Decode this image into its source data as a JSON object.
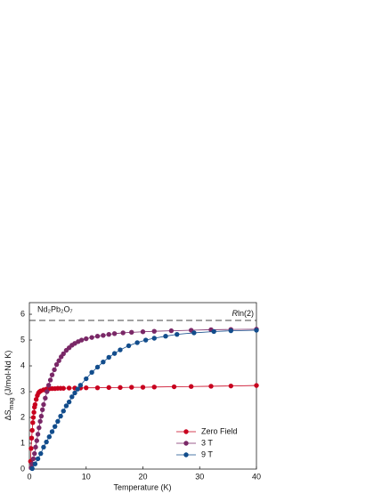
{
  "chart_data": {
    "type": "scatter",
    "annotation": "Nd₂Pb₂O₇",
    "hline": {
      "value": 5.76,
      "label": [
        "R",
        "ln(2)"
      ]
    },
    "x_label": "Temperature (K)",
    "y_label": [
      "ΔS",
      "mag",
      " (J/mol-Nd K)"
    ],
    "xlim": [
      0,
      40
    ],
    "ylim": [
      0,
      6.45
    ],
    "xticks": [
      0,
      10,
      20,
      30,
      40
    ],
    "yticks": [
      0,
      1,
      2,
      3,
      4,
      5,
      6
    ],
    "legend": "lower-right",
    "series": [
      {
        "name": "Zero Field",
        "color": "#c8001e",
        "x": [
          0.2,
          0.3,
          0.4,
          0.5,
          0.6,
          0.7,
          0.8,
          0.9,
          1.0,
          1.2,
          1.4,
          1.6,
          1.8,
          2.0,
          2.5,
          3,
          3.5,
          4,
          4.5,
          5,
          5.5,
          6,
          7,
          8,
          9,
          10,
          12,
          14,
          16,
          18,
          20,
          22,
          25.5,
          28.5,
          32,
          35.5,
          40
        ],
        "values": [
          0.3,
          0.8,
          1.2,
          1.5,
          1.8,
          2.0,
          2.2,
          2.4,
          2.5,
          2.7,
          2.85,
          2.95,
          3.0,
          3.03,
          3.07,
          3.1,
          3.11,
          3.12,
          3.12,
          3.13,
          3.13,
          3.13,
          3.14,
          3.14,
          3.14,
          3.15,
          3.15,
          3.16,
          3.16,
          3.17,
          3.17,
          3.18,
          3.19,
          3.2,
          3.21,
          3.22,
          3.24
        ]
      },
      {
        "name": "3 T",
        "color": "#7a2867",
        "x": [
          0.3,
          0.5,
          0.7,
          0.9,
          1.1,
          1.3,
          1.5,
          1.7,
          1.9,
          2.1,
          2.3,
          2.5,
          2.8,
          3.1,
          3.4,
          3.7,
          4.0,
          4.4,
          4.8,
          5.2,
          5.6,
          6.0,
          6.5,
          7,
          7.5,
          8,
          8.6,
          9.2,
          10,
          11,
          12,
          13,
          14,
          15,
          16.5,
          18,
          20,
          22,
          25,
          28.5,
          32,
          35.5,
          40
        ],
        "values": [
          0.05,
          0.2,
          0.4,
          0.6,
          0.85,
          1.1,
          1.35,
          1.6,
          1.85,
          2.05,
          2.3,
          2.5,
          2.75,
          3.0,
          3.25,
          3.45,
          3.65,
          3.85,
          4.05,
          4.2,
          4.35,
          4.47,
          4.6,
          4.7,
          4.8,
          4.87,
          4.94,
          5.0,
          5.05,
          5.1,
          5.15,
          5.18,
          5.22,
          5.25,
          5.28,
          5.3,
          5.32,
          5.34,
          5.36,
          5.38,
          5.4,
          5.41,
          5.42
        ]
      },
      {
        "name": "9 T",
        "color": "#124d8c",
        "x": [
          0.5,
          1,
          1.5,
          2,
          2.5,
          3,
          3.5,
          4,
          4.5,
          5,
          5.5,
          6,
          6.5,
          7,
          7.5,
          8,
          8.5,
          9,
          10,
          11,
          12,
          13,
          14,
          15,
          16,
          17.5,
          19,
          20.5,
          22,
          24,
          26,
          29,
          32.5,
          35.5,
          40
        ],
        "values": [
          0.02,
          0.2,
          0.4,
          0.6,
          0.85,
          1.05,
          1.25,
          1.45,
          1.65,
          1.85,
          2.05,
          2.25,
          2.45,
          2.6,
          2.8,
          2.95,
          3.1,
          3.25,
          3.5,
          3.75,
          3.95,
          4.15,
          4.33,
          4.48,
          4.62,
          4.78,
          4.9,
          5.0,
          5.07,
          5.15,
          5.22,
          5.28,
          5.33,
          5.36,
          5.38
        ]
      }
    ]
  }
}
